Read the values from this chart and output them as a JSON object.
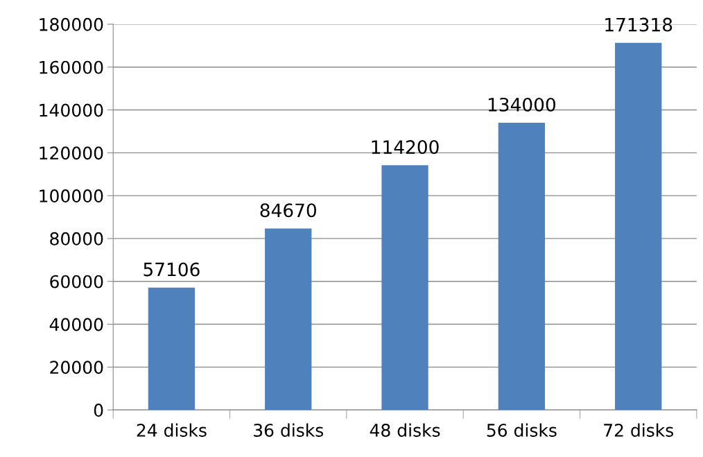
{
  "chart_data": {
    "type": "bar",
    "categories": [
      "24 disks",
      "36 disks",
      "48 disks",
      "56 disks",
      "72 disks"
    ],
    "values": [
      57106,
      84670,
      114200,
      134000,
      171318
    ],
    "color": "#4f81bd",
    "ylim": [
      0,
      180000
    ],
    "yticks": [
      0,
      20000,
      40000,
      60000,
      80000,
      100000,
      120000,
      140000,
      160000,
      180000
    ],
    "grid": "y",
    "data_labels": true,
    "legend": false
  }
}
